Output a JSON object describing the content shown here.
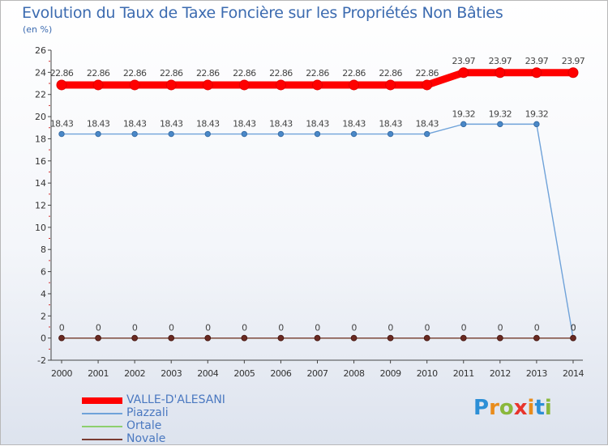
{
  "chart_data": {
    "type": "line",
    "title": "Evolution du Taux de Taxe Foncière sur les Propriétés Non Bâties",
    "ylabel": "(en %)",
    "xlabel": "",
    "ylim": [
      -2,
      26
    ],
    "yticks": [
      -2,
      0,
      2,
      4,
      6,
      8,
      10,
      12,
      14,
      16,
      18,
      20,
      22,
      24,
      26
    ],
    "x": [
      "2000",
      "2001",
      "2002",
      "2003",
      "2004",
      "2005",
      "2006",
      "2007",
      "2008",
      "2009",
      "2010",
      "2011",
      "2012",
      "2013",
      "2014"
    ],
    "series": [
      {
        "name": "VALLE-D'ALESANI",
        "color": "#ff0000",
        "values": [
          22.86,
          22.86,
          22.86,
          22.86,
          22.86,
          22.86,
          22.86,
          22.86,
          22.86,
          22.86,
          22.86,
          23.97,
          23.97,
          23.97,
          23.97
        ],
        "labels": [
          "22.86",
          "22.86",
          "22.86",
          "22.86",
          "22.86",
          "22.86",
          "22.86",
          "22.86",
          "22.86",
          "22.86",
          "22.86",
          "23.97",
          "23.97",
          "23.97",
          "23.97"
        ]
      },
      {
        "name": "Piazzali",
        "color": "#6fa2d9",
        "values": [
          18.43,
          18.43,
          18.43,
          18.43,
          18.43,
          18.43,
          18.43,
          18.43,
          18.43,
          18.43,
          18.43,
          19.32,
          19.32,
          19.32,
          0
        ],
        "labels": [
          "18.43",
          "18.43",
          "18.43",
          "18.43",
          "18.43",
          "18.43",
          "18.43",
          "18.43",
          "18.43",
          "18.43",
          "18.43",
          "19.32",
          "19.32",
          "19.32",
          "0"
        ]
      },
      {
        "name": "Ortale",
        "color": "#8dcf6e",
        "values": [
          0,
          0,
          0,
          0,
          0,
          0,
          0,
          0,
          0,
          0,
          0,
          0,
          0,
          0,
          0
        ],
        "labels": [
          "0",
          "0",
          "0",
          "0",
          "0",
          "0",
          "0",
          "0",
          "0",
          "0",
          "0",
          "0",
          "0",
          "0",
          "0"
        ]
      },
      {
        "name": "Novale",
        "color": "#7a3c32",
        "values": [
          0,
          0,
          0,
          0,
          0,
          0,
          0,
          0,
          0,
          0,
          0,
          0,
          0,
          0,
          0
        ],
        "labels": []
      }
    ],
    "grid": false,
    "legend": "bottom-left"
  },
  "brand": {
    "logo_letters": [
      "P",
      "r",
      "o",
      "x",
      "i",
      "t",
      "i"
    ],
    "logo_colors": [
      "#2c8fd6",
      "#e98c1c",
      "#8ab83c",
      "#e8342c",
      "#e98c1c",
      "#2c8fd6",
      "#8ab83c"
    ]
  }
}
